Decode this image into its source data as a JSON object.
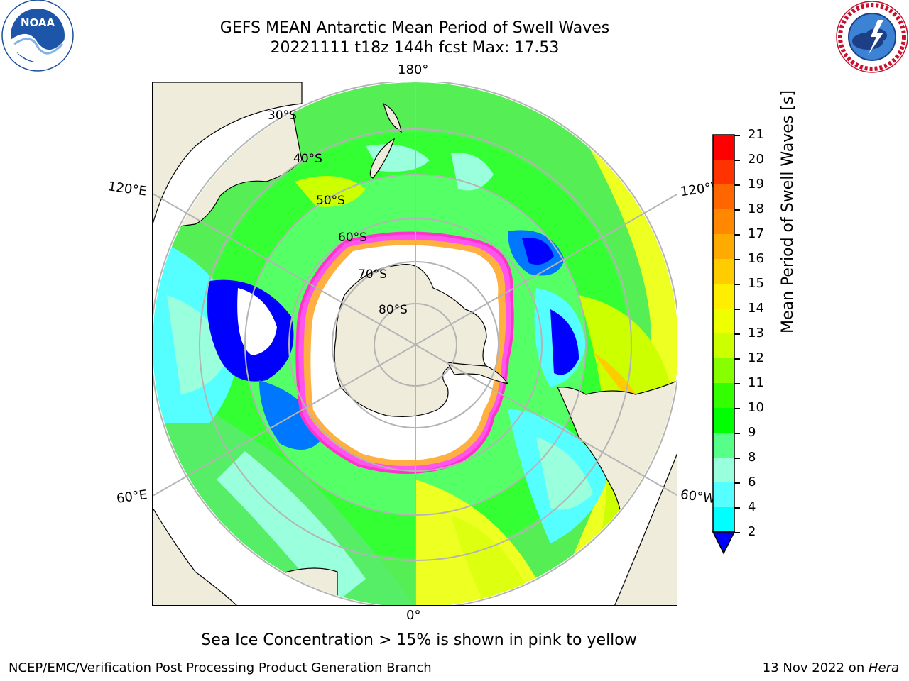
{
  "header": {
    "title_line1": "GEFS MEAN Antarctic Mean Period of Swell Waves",
    "title_line2": "20221111 t18z 144h fcst   Max: 17.53"
  },
  "logos": {
    "left": {
      "name": "noaa-logo",
      "text": "NOAA"
    },
    "right": {
      "name": "nws-logo",
      "text": "NATIONAL WEATHER SERVICE"
    }
  },
  "map": {
    "projection": "south-polar-stereographic",
    "longitude_labels": {
      "top": "180°",
      "bottom": "0°",
      "upper_left": "120°E",
      "upper_right": "120°W",
      "lower_left": "60°E",
      "lower_right": "60°W"
    },
    "latitude_labels": [
      "30°S",
      "40°S",
      "50°S",
      "60°S",
      "70°S",
      "80°S"
    ],
    "colors": {
      "land": "#efecdc",
      "graticule": "#b4b4b4",
      "ice_edge": "#ff44dd",
      "ice_fringe": "#ffb040"
    }
  },
  "colorbar": {
    "label": "Mean Period of Swell Waves [s]",
    "ticks": [
      "21",
      "20",
      "19",
      "18",
      "17",
      "16",
      "15",
      "14",
      "13",
      "12",
      "11",
      "10",
      "9",
      "8",
      "6",
      "4",
      "2"
    ],
    "colors": [
      "#ff0000",
      "#ff3300",
      "#ff6600",
      "#ff8800",
      "#ffaa00",
      "#ffcc00",
      "#ffee00",
      "#eeff00",
      "#ccff00",
      "#88ff00",
      "#33ff00",
      "#00ff00",
      "#55ff88",
      "#99ffdd",
      "#55ffff",
      "#00ffff",
      "#00ccff",
      "#0077ff",
      "#0000ff"
    ],
    "extend": "min"
  },
  "subtitle": "Sea Ice Concentration > 15% is shown in pink to yellow",
  "footer": {
    "left": "NCEP/EMC/Verification Post Processing Product Generation Branch",
    "right_date": "13 Nov 2022 on ",
    "right_machine": "Hera"
  }
}
